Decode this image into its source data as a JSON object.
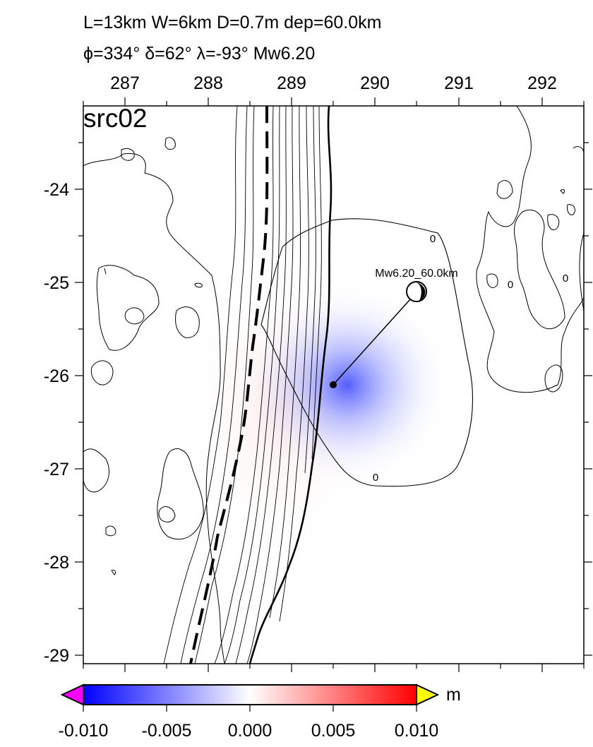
{
  "header": {
    "line1": "L=13km W=6km D=0.7m dep=60.0km",
    "line2": "ϕ=334° δ=62° λ=-93° Mw6.20"
  },
  "map": {
    "panel_label": "src02",
    "lon_ticks": [
      "287",
      "288",
      "289",
      "290",
      "291",
      "292"
    ],
    "lat_ticks": [
      "-24",
      "-25",
      "-26",
      "-27",
      "-28",
      "-29"
    ],
    "event_label": "Mw6.20_60.0km",
    "contour_labels": [
      "0",
      "0",
      "0",
      "0"
    ]
  },
  "colorbar": {
    "unit": "m",
    "ticks": [
      "-0.010",
      "-0.005",
      "0.000",
      "0.005",
      "0.010"
    ],
    "colors": {
      "low": "#0000ff",
      "mid": "#ffffff",
      "high": "#ff0000",
      "below": "#ff00ff",
      "above": "#ffff00"
    }
  }
}
